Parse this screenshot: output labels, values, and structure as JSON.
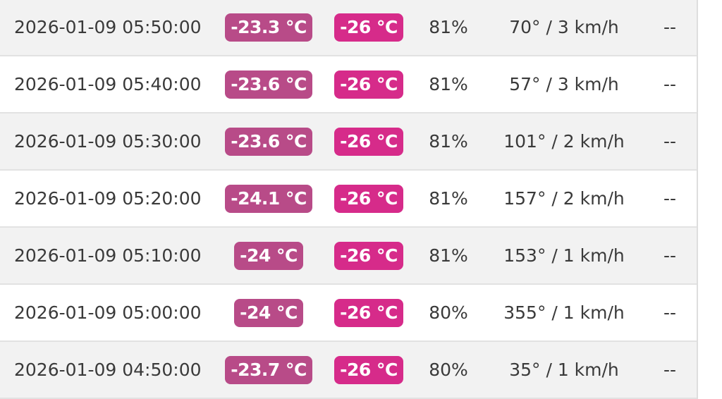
{
  "colors": {
    "temp_badge": "#b84b88",
    "dew_badge": "#d62b8a"
  },
  "rows": [
    {
      "time": "2026-01-09 05:50:00",
      "temp": "-23.3 °C",
      "dew": "-26 °C",
      "humidity": "81%",
      "wind": "70° / 3 km/h",
      "extra": "--"
    },
    {
      "time": "2026-01-09 05:40:00",
      "temp": "-23.6 °C",
      "dew": "-26 °C",
      "humidity": "81%",
      "wind": "57° / 3 km/h",
      "extra": "--"
    },
    {
      "time": "2026-01-09 05:30:00",
      "temp": "-23.6 °C",
      "dew": "-26 °C",
      "humidity": "81%",
      "wind": "101° / 2 km/h",
      "extra": "--"
    },
    {
      "time": "2026-01-09 05:20:00",
      "temp": "-24.1 °C",
      "dew": "-26 °C",
      "humidity": "81%",
      "wind": "157° / 2 km/h",
      "extra": "--"
    },
    {
      "time": "2026-01-09 05:10:00",
      "temp": "-24 °C",
      "dew": "-26 °C",
      "humidity": "81%",
      "wind": "153° / 1 km/h",
      "extra": "--"
    },
    {
      "time": "2026-01-09 05:00:00",
      "temp": "-24 °C",
      "dew": "-26 °C",
      "humidity": "80%",
      "wind": "355° / 1 km/h",
      "extra": "--"
    },
    {
      "time": "2026-01-09 04:50:00",
      "temp": "-23.7 °C",
      "dew": "-26 °C",
      "humidity": "80%",
      "wind": "35° / 1 km/h",
      "extra": "--"
    }
  ]
}
